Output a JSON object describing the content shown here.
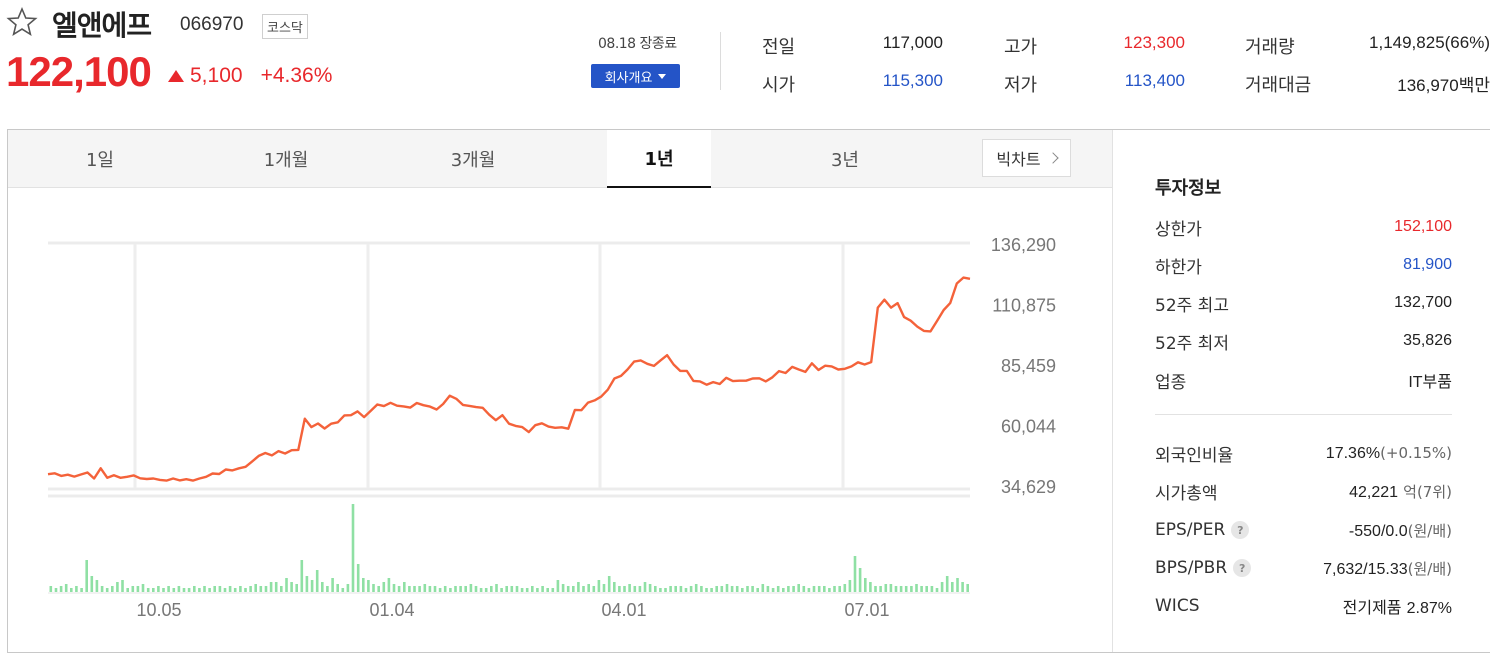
{
  "stock": {
    "name": "엘앤에프",
    "code": "066970",
    "market": "코스닥",
    "price": "122,100",
    "change": "5,100",
    "change_pct": "+4.36%",
    "close_time": "08.18 장종료",
    "company_button": "회사개요"
  },
  "summary": {
    "prev_label": "전일",
    "prev": "117,000",
    "open_label": "시가",
    "open": "115,300",
    "high_label": "고가",
    "high": "123,300",
    "low_label": "저가",
    "low": "113,400",
    "volume_label": "거래량",
    "volume": "1,149,825(66%)",
    "amount_label": "거래대금",
    "amount": "136,970백만"
  },
  "tabs": [
    "1일",
    "1개월",
    "3개월",
    "1년",
    "3년"
  ],
  "active_tab": "1년",
  "bigchart_label": "빅차트",
  "chart_data": {
    "type": "line",
    "title": "",
    "ylabel": "",
    "y_ticks": [
      "136,290",
      "110,875",
      "85,459",
      "60,044",
      "34,629"
    ],
    "x_ticks": [
      "10.05",
      "01.04",
      "04.01",
      "07.01"
    ],
    "ylim": [
      34629,
      136290
    ],
    "price_series": [
      [
        0,
        40000
      ],
      [
        3,
        40400
      ],
      [
        6,
        39300
      ],
      [
        9,
        39800
      ],
      [
        12,
        39000
      ],
      [
        15,
        39900
      ],
      [
        18,
        40700
      ],
      [
        21,
        38200
      ],
      [
        24,
        42500
      ],
      [
        27,
        38500
      ],
      [
        30,
        39600
      ],
      [
        33,
        38500
      ],
      [
        36,
        38900
      ],
      [
        39,
        39500
      ],
      [
        42,
        38300
      ],
      [
        45,
        38000
      ],
      [
        48,
        38200
      ],
      [
        51,
        37600
      ],
      [
        54,
        37300
      ],
      [
        57,
        38200
      ],
      [
        60,
        37400
      ],
      [
        63,
        37900
      ],
      [
        66,
        37300
      ],
      [
        69,
        38200
      ],
      [
        72,
        38900
      ],
      [
        75,
        40300
      ],
      [
        78,
        40100
      ],
      [
        81,
        42000
      ],
      [
        84,
        41600
      ],
      [
        87,
        42500
      ],
      [
        90,
        43100
      ],
      [
        93,
        45400
      ],
      [
        96,
        47700
      ],
      [
        99,
        48900
      ],
      [
        102,
        47900
      ],
      [
        105,
        49700
      ],
      [
        108,
        48700
      ],
      [
        111,
        50100
      ],
      [
        114,
        50200
      ],
      [
        117,
        63300
      ],
      [
        120,
        59800
      ],
      [
        123,
        61300
      ],
      [
        126,
        59200
      ],
      [
        129,
        61200
      ],
      [
        132,
        61800
      ],
      [
        135,
        64700
      ],
      [
        138,
        64800
      ],
      [
        141,
        66400
      ],
      [
        144,
        64000
      ],
      [
        147,
        66600
      ],
      [
        150,
        69300
      ],
      [
        153,
        68600
      ],
      [
        156,
        70000
      ],
      [
        159,
        68800
      ],
      [
        162,
        68500
      ],
      [
        165,
        68000
      ],
      [
        168,
        69900
      ],
      [
        171,
        69000
      ],
      [
        174,
        68400
      ],
      [
        177,
        67200
      ],
      [
        180,
        69500
      ],
      [
        183,
        73000
      ],
      [
        186,
        71700
      ],
      [
        189,
        69100
      ],
      [
        192,
        68700
      ],
      [
        195,
        68200
      ],
      [
        198,
        67900
      ],
      [
        201,
        65000
      ],
      [
        204,
        62700
      ],
      [
        207,
        64800
      ],
      [
        210,
        61200
      ],
      [
        213,
        60300
      ],
      [
        216,
        59800
      ],
      [
        219,
        57700
      ],
      [
        222,
        60600
      ],
      [
        225,
        61400
      ],
      [
        228,
        60000
      ],
      [
        231,
        59500
      ],
      [
        234,
        59700
      ],
      [
        237,
        59100
      ],
      [
        240,
        67000
      ],
      [
        243,
        66900
      ],
      [
        246,
        70100
      ],
      [
        249,
        71000
      ],
      [
        252,
        72600
      ],
      [
        255,
        75500
      ],
      [
        258,
        80200
      ],
      [
        261,
        81300
      ],
      [
        264,
        84000
      ],
      [
        267,
        87300
      ],
      [
        270,
        87800
      ],
      [
        273,
        86400
      ],
      [
        276,
        85500
      ],
      [
        279,
        87800
      ],
      [
        282,
        90000
      ],
      [
        285,
        86100
      ],
      [
        288,
        83400
      ],
      [
        291,
        83400
      ],
      [
        294,
        79200
      ],
      [
        297,
        79000
      ],
      [
        300,
        77600
      ],
      [
        303,
        78700
      ],
      [
        306,
        77900
      ],
      [
        309,
        80500
      ],
      [
        312,
        79100
      ],
      [
        315,
        79300
      ],
      [
        318,
        79300
      ],
      [
        321,
        80200
      ],
      [
        324,
        80300
      ],
      [
        327,
        79000
      ],
      [
        330,
        80700
      ],
      [
        333,
        83300
      ],
      [
        336,
        82500
      ],
      [
        339,
        85100
      ],
      [
        342,
        84000
      ],
      [
        345,
        83000
      ],
      [
        348,
        86600
      ],
      [
        351,
        83800
      ],
      [
        354,
        85600
      ],
      [
        357,
        85300
      ],
      [
        360,
        84000
      ],
      [
        363,
        84300
      ],
      [
        366,
        85300
      ],
      [
        369,
        87000
      ],
      [
        372,
        86100
      ],
      [
        375,
        87100
      ],
      [
        378,
        110000
      ],
      [
        381,
        113300
      ],
      [
        384,
        110000
      ],
      [
        387,
        111900
      ],
      [
        390,
        106000
      ],
      [
        393,
        104500
      ],
      [
        396,
        102000
      ],
      [
        399,
        100200
      ],
      [
        402,
        100000
      ],
      [
        405,
        104400
      ],
      [
        408,
        109000
      ],
      [
        411,
        111900
      ],
      [
        414,
        120100
      ],
      [
        417,
        122600
      ],
      [
        420,
        122100
      ]
    ],
    "volume_series": [
      3,
      2,
      3,
      4,
      2,
      3,
      2,
      16,
      8,
      6,
      3,
      2,
      3,
      5,
      6,
      2,
      3,
      3,
      4,
      2,
      2,
      3,
      2,
      3,
      2,
      3,
      2,
      2,
      3,
      2,
      3,
      2,
      3,
      3,
      2,
      3,
      2,
      3,
      2,
      3,
      4,
      3,
      3,
      5,
      5,
      3,
      7,
      5,
      4,
      16,
      8,
      6,
      11,
      5,
      3,
      7,
      4,
      2,
      4,
      44,
      14,
      7,
      6,
      4,
      3,
      5,
      7,
      4,
      3,
      5,
      3,
      3,
      3,
      4,
      3,
      3,
      2,
      3,
      2,
      3,
      3,
      3,
      4,
      3,
      2,
      2,
      3,
      4,
      2,
      3,
      3,
      3,
      2,
      2,
      3,
      2,
      3,
      2,
      2,
      6,
      4,
      3,
      3,
      5,
      3,
      4,
      3,
      6,
      4,
      8,
      5,
      3,
      3,
      4,
      3,
      3,
      5,
      4,
      3,
      2,
      2,
      3,
      3,
      3,
      2,
      3,
      4,
      3,
      2,
      2,
      3,
      3,
      4,
      3,
      3,
      2,
      3,
      3,
      2,
      4,
      3,
      2,
      3,
      2,
      3,
      3,
      4,
      3,
      2,
      3,
      3,
      3,
      2,
      3,
      3,
      4,
      6,
      18,
      12,
      7,
      5,
      3,
      3,
      4,
      4,
      3,
      3,
      3,
      3,
      4,
      3,
      3,
      3,
      2,
      5,
      8,
      5,
      7,
      5,
      4
    ]
  },
  "invest_info": {
    "title": "투자정보",
    "rows1": [
      {
        "label": "상한가",
        "value": "152,100",
        "color": "#e8282c"
      },
      {
        "label": "하한가",
        "value": "81,900",
        "color": "#2454c7"
      },
      {
        "label": "52주 최고",
        "value": "132,700",
        "color": "#222222"
      },
      {
        "label": "52주 최저",
        "value": "35,826",
        "color": "#222222"
      },
      {
        "label": "업종",
        "value": "IT부품",
        "color": "#222222"
      }
    ],
    "foreign_ratio_label": "외국인비율",
    "foreign_ratio": "17.36%",
    "foreign_ratio_sub": "(+0.15%)",
    "market_cap_label": "시가총액",
    "market_cap": "42,221",
    "market_cap_sub": "억(7위)",
    "eps_label": "EPS/PER",
    "eps": "-550/0.0",
    "eps_sub": "(원/배)",
    "bps_label": "BPS/PBR",
    "bps": "7,632/15.33",
    "bps_sub": "(원/배)",
    "wics_label": "WICS",
    "wics": "전기제품",
    "wics_pct": "2.87%",
    "hint_mark": "?"
  },
  "colors": {
    "up": "#e8282c",
    "down": "#2454c7",
    "line": "#f4623a",
    "volume": "#8fe0a4",
    "button": "#2454c7"
  }
}
